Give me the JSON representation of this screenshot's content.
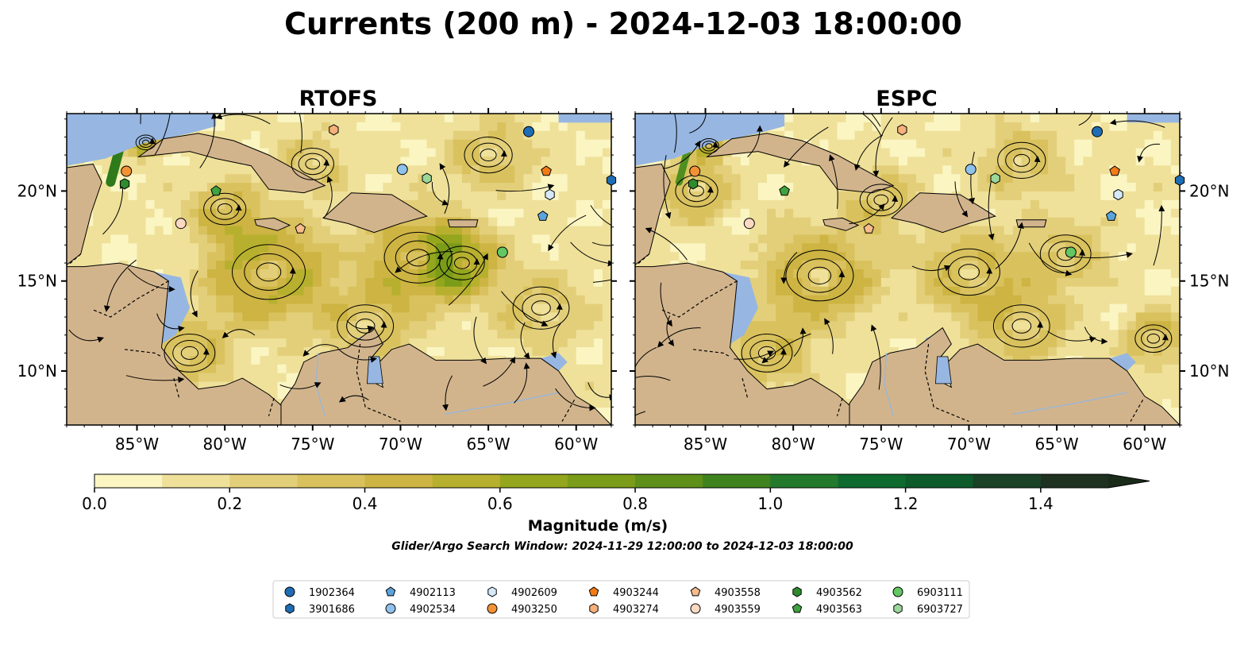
{
  "figure": {
    "title": "Currents (200 m) - 2024-12-03 18:00:00",
    "colorbar_label": "Magnitude (m/s)",
    "search_window_text": "Glider/Argo Search Window: 2024-11-29 12:00:00 to 2024-12-03 18:00:00"
  },
  "colors": {
    "ocean_nodata": "#97b6e1",
    "land": "#d2b48c",
    "background": "#ffffff",
    "streamline": "#000000"
  },
  "chart_data": {
    "type": "heatmap",
    "variable": "current speed at 200 m",
    "units": "m/s",
    "region": {
      "lon_range": [
        -89,
        -58
      ],
      "lat_range": [
        7,
        24.3
      ]
    },
    "panels": [
      {
        "name": "RTOFS",
        "overlay": "streamlines",
        "xticks": [
          "85°W",
          "80°W",
          "75°W",
          "70°W",
          "65°W",
          "60°W"
        ],
        "yticks": [
          "20°N",
          "15°N",
          "10°N"
        ],
        "ytick_side": "left"
      },
      {
        "name": "ESPC",
        "overlay": "streamlines",
        "xticks": [
          "85°W",
          "80°W",
          "75°W",
          "70°W",
          "65°W",
          "60°W"
        ],
        "yticks": [
          "20°N",
          "15°N",
          "10°N"
        ],
        "ytick_side": "right"
      }
    ],
    "xtick_values": [
      -85,
      -80,
      -75,
      -70,
      -65,
      -60
    ],
    "ytick_values": [
      20,
      15,
      10
    ],
    "colorbar": {
      "range": [
        0.0,
        1.5
      ],
      "extend": "max",
      "ticks": [
        0.0,
        0.2,
        0.4,
        0.6,
        0.8,
        1.0,
        1.2,
        1.4
      ],
      "tick_labels": [
        "0.0",
        "0.2",
        "0.4",
        "0.6",
        "0.8",
        "1.0",
        "1.2",
        "1.4"
      ],
      "boundaries": [
        0.0,
        0.1,
        0.2,
        0.3,
        0.4,
        0.5,
        0.6,
        0.7,
        0.8,
        0.9,
        1.0,
        1.1,
        1.2,
        1.3,
        1.4,
        1.5
      ],
      "colors": [
        "#fbf5c2",
        "#efe19a",
        "#e3cf7a",
        "#d9c25e",
        "#cdb443",
        "#b7b02e",
        "#94a61d",
        "#7a9c18",
        "#5e8f19",
        "#3f831f",
        "#237a2c",
        "#0e6a2e",
        "#0d5a2b",
        "#1a4226",
        "#1f3120"
      ],
      "extend_color": "#1a2b1a"
    },
    "floats": [
      {
        "id": "1902364",
        "marker": "circle",
        "color": "#1f6db5",
        "lon": -62.7,
        "lat": 23.3
      },
      {
        "id": "3901686",
        "marker": "hexagon",
        "color": "#1f6db5",
        "lon": -58.0,
        "lat": 20.6
      },
      {
        "id": "4902113",
        "marker": "pentagon",
        "color": "#5ba3dc",
        "lon": -61.9,
        "lat": 18.6
      },
      {
        "id": "4902534",
        "marker": "circle",
        "color": "#8fc1ea",
        "lon": -69.9,
        "lat": 21.2
      },
      {
        "id": "4902609",
        "marker": "hexagon",
        "color": "#d6e9f8",
        "lon": -61.5,
        "lat": 19.8
      },
      {
        "id": "4903250",
        "marker": "circle",
        "color": "#f39235",
        "lon": -85.6,
        "lat": 21.1
      },
      {
        "id": "4903244",
        "marker": "pentagon",
        "color": "#f47a16",
        "lon": -61.7,
        "lat": 21.1
      },
      {
        "id": "4903274",
        "marker": "hexagon",
        "color": "#f6b07a",
        "lon": -73.8,
        "lat": 23.4
      },
      {
        "id": "4903558",
        "marker": "pentagon",
        "color": "#f7bc8c",
        "lon": -75.7,
        "lat": 17.9
      },
      {
        "id": "4903559",
        "marker": "circle",
        "color": "#fad8c2",
        "lon": -82.5,
        "lat": 18.2
      },
      {
        "id": "4903562",
        "marker": "hexagon",
        "color": "#2e8b2e",
        "lon": -85.7,
        "lat": 20.4
      },
      {
        "id": "4903563",
        "marker": "pentagon",
        "color": "#3fa33f",
        "lon": -80.5,
        "lat": 20.0
      },
      {
        "id": "6903111",
        "marker": "circle",
        "color": "#63c763",
        "lon": -64.2,
        "lat": 16.6
      },
      {
        "id": "6903727",
        "marker": "hexagon",
        "color": "#9ad79a",
        "lon": -68.5,
        "lat": 20.7
      }
    ]
  }
}
